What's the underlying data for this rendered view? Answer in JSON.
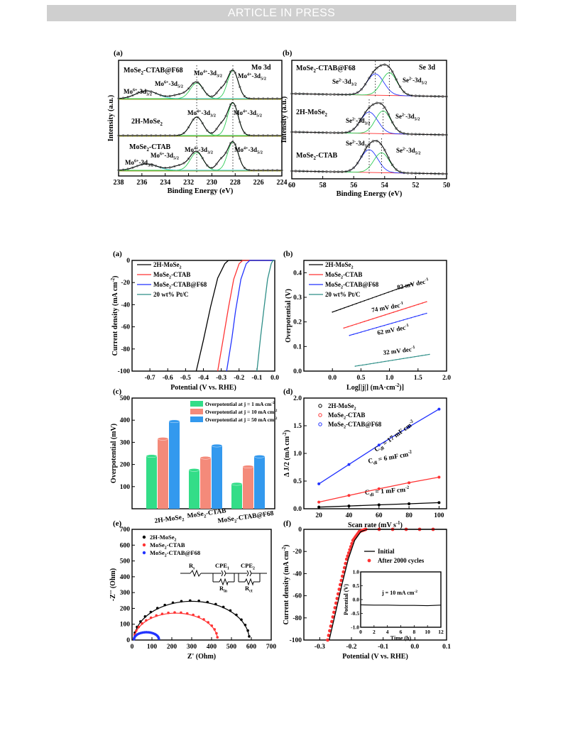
{
  "banner": "ARTICLE IN PRESS",
  "colors": {
    "black": "#000000",
    "red": "#ff3333",
    "blue": "#2233ff",
    "teal": "#2f8f88",
    "green": "#2ecc55",
    "cyan": "#33cccc",
    "olive": "#9a9a20",
    "bar_green": "#33dd88",
    "bar_red": "#f48a7a",
    "bar_blue": "#3399ee"
  },
  "chart_data": [
    {
      "id": "fig1a",
      "type": "line",
      "panel": "(a)",
      "xlabel": "Binding Energy (eV)",
      "ylabel": "Intensity (a.u.)",
      "xlim": [
        238,
        224
      ],
      "x_reversed": true,
      "xticks": [
        238,
        236,
        234,
        232,
        230,
        228,
        226,
        224
      ],
      "corner_label": "Mo 3d",
      "stacks": [
        {
          "name": "MoSe2-CTAB@F68",
          "color": "#2233ff",
          "annotations": [
            "Mo6+-3d3/2",
            "Mo6+-3d5/2",
            "Mo4+-3d3/2",
            "Mo4+-3d5/2"
          ]
        },
        {
          "name": "2H-MoSe2",
          "color": "#000000",
          "annotations": [
            "Mo4+-3d3/2",
            "Mo4+-3d5/2"
          ]
        },
        {
          "name": "MoSe2-CTAB",
          "color": "#ff3333",
          "annotations": [
            "Mo6+-3d3/2",
            "Mo6+-3d5/2",
            "Mo4+-3d3/2",
            "Mo4+-3d5/2"
          ]
        }
      ]
    },
    {
      "id": "fig1b",
      "type": "line",
      "panel": "(b)",
      "xlabel": "Binding Energy (eV)",
      "ylabel": "Intensity (a.u.)",
      "xlim": [
        60,
        50
      ],
      "x_reversed": true,
      "xticks": [
        60,
        58,
        56,
        54,
        52,
        50
      ],
      "corner_label": "Se 3d",
      "stacks": [
        {
          "name": "MoSe2-CTAB@F68",
          "color": "#2233ff",
          "annotations": [
            "Se2--3d3/2",
            "Se2--3d5/2"
          ]
        },
        {
          "name": "2H-MoSe2",
          "color": "#000000",
          "annotations": [
            "Se2--3d3/2",
            "Se2--3d5/2"
          ]
        },
        {
          "name": "MoSe2-CTAB",
          "color": "#ff3333",
          "annotations": [
            "Se2--3d3/2",
            "Se2--3d5/2"
          ]
        }
      ]
    },
    {
      "id": "fig2a",
      "type": "line",
      "panel": "(a)",
      "xlabel": "Potential (V vs. RHE)",
      "ylabel": "Current density (mA cm-2)",
      "xlim": [
        -0.8,
        0.0
      ],
      "ylim": [
        -100,
        0
      ],
      "xticks": [
        -0.7,
        -0.6,
        -0.5,
        -0.4,
        -0.3,
        -0.2,
        -0.1,
        0.0
      ],
      "yticks": [
        0,
        -20,
        -40,
        -60,
        -80,
        -100
      ],
      "legend": [
        "2H-MoSe2",
        "MoSe2-CTAB",
        "MoSe2-CTAB@F68",
        "20 wt% Pt/C"
      ],
      "series": [
        {
          "name": "2H-MoSe2",
          "color": "#000000",
          "x": [
            -0.44,
            -0.4,
            -0.36,
            -0.32,
            -0.28,
            -0.26
          ],
          "y": [
            -100,
            -72,
            -42,
            -16,
            -3,
            0
          ]
        },
        {
          "name": "MoSe2-CTAB",
          "color": "#ff3333",
          "x": [
            -0.32,
            -0.29,
            -0.26,
            -0.23,
            -0.2,
            -0.18
          ],
          "y": [
            -100,
            -72,
            -43,
            -17,
            -3,
            0
          ]
        },
        {
          "name": "MoSe2-CTAB@F68",
          "color": "#2233ff",
          "x": [
            -0.27,
            -0.24,
            -0.22,
            -0.19,
            -0.16,
            -0.14
          ],
          "y": [
            -100,
            -70,
            -46,
            -17,
            -3,
            0
          ]
        },
        {
          "name": "20 wt% Pt/C",
          "color": "#2f8f88",
          "x": [
            -0.1,
            -0.08,
            -0.06,
            -0.04,
            -0.02,
            -0.01
          ],
          "y": [
            -100,
            -70,
            -43,
            -17,
            -3,
            0
          ]
        }
      ]
    },
    {
      "id": "fig2b",
      "type": "line",
      "panel": "(b)",
      "xlabel": "Log[|j|] (mA·cm-2)]",
      "ylabel": "Overpotential (V)",
      "xlim": [
        -0.5,
        2.0
      ],
      "ylim": [
        0.0,
        0.45
      ],
      "xticks": [
        0.0,
        0.5,
        1.0,
        1.5,
        2.0
      ],
      "yticks": [
        0.0,
        0.1,
        0.2,
        0.3,
        0.4
      ],
      "legend": [
        "2H-MoSe2",
        "MoSe2-CTAB",
        "MoSe2-CTAB@F68",
        "20 wt% Pt/C"
      ],
      "series": [
        {
          "name": "2H-MoSe2",
          "color": "#000000",
          "x": [
            0.0,
            1.4
          ],
          "y": [
            0.24,
            0.355
          ],
          "tafel": "82 mV dec-1"
        },
        {
          "name": "MoSe2-CTAB",
          "color": "#ff3333",
          "x": [
            0.2,
            1.65
          ],
          "y": [
            0.175,
            0.282
          ],
          "tafel": "74 mV dec-1"
        },
        {
          "name": "MoSe2-CTAB@F68",
          "color": "#2233ff",
          "x": [
            0.3,
            1.65
          ],
          "y": [
            0.145,
            0.235
          ],
          "tafel": "62 mV dec-1"
        },
        {
          "name": "20 wt% Pt/C",
          "color": "#2f8f88",
          "x": [
            0.4,
            1.7
          ],
          "y": [
            0.02,
            0.068
          ],
          "tafel": "32 mV dec-1"
        }
      ]
    },
    {
      "id": "fig2c",
      "type": "bar",
      "panel": "(c)",
      "ylabel": "Overpotential  (mV)",
      "ylim": [
        0,
        500
      ],
      "yticks": [
        100,
        200,
        300,
        400,
        500
      ],
      "categories": [
        "2H-MoSe2",
        "MoSe2-CTAB",
        "MoSe2-CTAB@F68"
      ],
      "category_colors": [
        "#000000",
        "#ff3333",
        "#2233ff"
      ],
      "series": [
        {
          "name": "Overpotential at j = 1 mA cm-2",
          "color": "#33dd88",
          "values": [
            238,
            175,
            112
          ]
        },
        {
          "name": "Overpotential at j = 10 mA cm-2",
          "color": "#f48a7a",
          "values": [
            316,
            230,
            190
          ]
        },
        {
          "name": "Overpotential at j = 50 mA cm-2",
          "color": "#3399ee",
          "values": [
            395,
            285,
            236
          ]
        }
      ]
    },
    {
      "id": "fig2d",
      "type": "scatter",
      "panel": "(d)",
      "xlabel": "Scan rate (mV s-1)",
      "ylabel": "Δ J/2 (mA cm-2)",
      "xlim": [
        10,
        105
      ],
      "ylim": [
        0.0,
        2.0
      ],
      "xticks": [
        20,
        40,
        60,
        80,
        100
      ],
      "yticks": [
        0.0,
        0.5,
        1.0,
        1.5,
        2.0
      ],
      "legend": [
        "2H-MoSe2",
        "MoSe2-CTAB",
        "MoSe2-CTAB@F68"
      ],
      "series": [
        {
          "name": "2H-MoSe2",
          "color": "#000000",
          "x": [
            20,
            40,
            60,
            80,
            100
          ],
          "y": [
            0.03,
            0.05,
            0.07,
            0.09,
            0.11
          ],
          "cdl": "Cdl = 1 mF cm-2"
        },
        {
          "name": "MoSe2-CTAB",
          "color": "#ff3333",
          "x": [
            20,
            40,
            60,
            80,
            100
          ],
          "y": [
            0.12,
            0.24,
            0.36,
            0.47,
            0.57
          ],
          "cdl": "Cdl = 6 mF cm-2"
        },
        {
          "name": "MoSe2-CTAB@F68",
          "color": "#2233ff",
          "x": [
            20,
            40,
            60,
            80,
            100
          ],
          "y": [
            0.45,
            0.8,
            1.15,
            1.48,
            1.8
          ],
          "cdl": "Cdl = 17 mF cm-2"
        }
      ]
    },
    {
      "id": "fig2e",
      "type": "scatter",
      "panel": "(e)",
      "xlabel": "Z' (Ohm)",
      "ylabel": "-Z'' (Ohm)",
      "xlim": [
        0,
        700
      ],
      "ylim": [
        0,
        700
      ],
      "xticks": [
        0,
        100,
        200,
        300,
        400,
        500,
        600,
        700
      ],
      "yticks": [
        0,
        100,
        200,
        300,
        400,
        500,
        600,
        700
      ],
      "legend": [
        "2H-MoSe2",
        "MoSe2-CTAB",
        "MoSe2-CTAB@F68"
      ],
      "circuit_labels": [
        "Rs",
        "CPE1",
        "CPE2",
        "Rin",
        "Rct"
      ],
      "series": [
        {
          "name": "2H-MoSe2",
          "color": "#000000",
          "x_start": 10,
          "x_end": 590,
          "peak": 245
        },
        {
          "name": "MoSe2-CTAB",
          "color": "#ff3333",
          "x_start": 10,
          "x_end": 430,
          "peak": 170
        },
        {
          "name": "MoSe2-CTAB@F68",
          "color": "#2233ff",
          "x_start": 10,
          "x_end": 135,
          "peak": 45
        }
      ]
    },
    {
      "id": "fig2f",
      "type": "line",
      "panel": "(f)",
      "xlabel": "Potential (V vs. RHE)",
      "ylabel": "Current density (mA cm-2)",
      "xlim": [
        -0.35,
        0.1
      ],
      "ylim": [
        -100,
        0
      ],
      "xticks": [
        -0.3,
        -0.2,
        -0.1,
        0.0,
        0.1
      ],
      "yticks": [
        0,
        -20,
        -40,
        -60,
        -80,
        -100
      ],
      "legend": [
        "Initial",
        "After 2000 cycles"
      ],
      "series": [
        {
          "name": "Initial",
          "color": "#000000",
          "x": [
            -0.27,
            -0.25,
            -0.23,
            -0.21,
            -0.19,
            -0.17,
            -0.15
          ],
          "y": [
            -100,
            -75,
            -50,
            -27,
            -10,
            -2,
            0
          ]
        },
        {
          "name": "After 2000 cycles",
          "color": "#ff3333",
          "x": [
            -0.275,
            -0.255,
            -0.235,
            -0.215,
            -0.195,
            -0.175,
            -0.155
          ],
          "y": [
            -100,
            -75,
            -50,
            -27,
            -10,
            -2,
            0
          ]
        }
      ],
      "inset": {
        "xlabel": "Time (h)",
        "ylabel": "Potential (V)",
        "xlim": [
          0,
          12
        ],
        "ylim": [
          -1.0,
          1.0
        ],
        "xticks": [
          0,
          2,
          4,
          6,
          8,
          10,
          12
        ],
        "yticks": [
          1.0,
          0.5,
          0.0,
          -0.5,
          -1.0
        ],
        "annotation": "j = 10 mA cm-2",
        "x": [
          0,
          2,
          4,
          6,
          8,
          10,
          12
        ],
        "y": [
          -0.19,
          -0.2,
          -0.2,
          -0.21,
          -0.21,
          -0.22,
          -0.2
        ]
      }
    }
  ]
}
